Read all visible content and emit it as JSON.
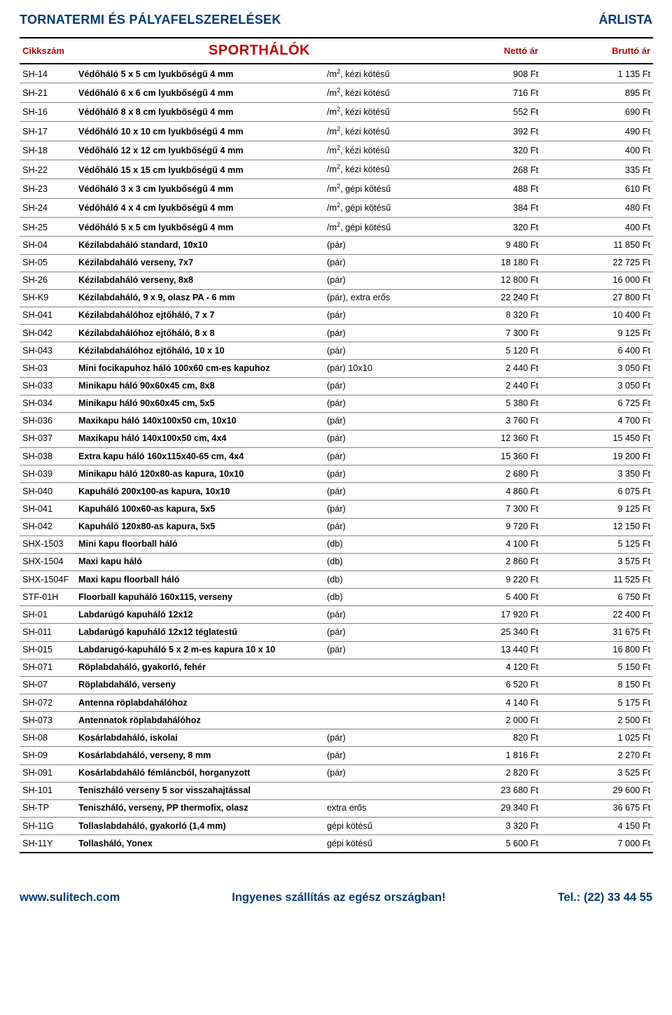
{
  "header": {
    "title_left": "TORNATERMI ÉS PÁLYAFELSZERELÉSEK",
    "title_right": "ÁRLISTA"
  },
  "table": {
    "headers": {
      "code": "Cikkszám",
      "title": "SPORTHÁLÓK",
      "net": "Nettó ár",
      "gross": "Bruttó ár"
    },
    "rows": [
      {
        "code": "SH-14",
        "desc": "Védőháló   5 x 5 cm   lyukbőségű    4 mm",
        "unit": "/m²,  kézi kötésű",
        "net": "908 Ft",
        "gross": "1 135 Ft"
      },
      {
        "code": "SH-21",
        "desc": "Védőháló   6 x 6 cm   lyukbőségű    4 mm",
        "unit": "/m²,  kézi kötésű",
        "net": "716 Ft",
        "gross": "895 Ft"
      },
      {
        "code": "SH-16",
        "desc": "Védőháló   8 x 8 cm   lyukbőségű    4 mm",
        "unit": "/m²,  kézi kötésű",
        "net": "552 Ft",
        "gross": "690 Ft"
      },
      {
        "code": "SH-17",
        "desc": "Védőháló  10 x 10 cm lyukbőségű    4 mm",
        "unit": "/m²,  kézi kötésű",
        "net": "392 Ft",
        "gross": "490 Ft"
      },
      {
        "code": "SH-18",
        "desc": "Védőháló  12 x 12 cm lyukbőségű    4 mm",
        "unit": "/m²,  kézi kötésű",
        "net": "320 Ft",
        "gross": "400 Ft"
      },
      {
        "code": "SH-22",
        "desc": "Védőháló  15 x 15 cm lyukbőségű    4 mm",
        "unit": "/m²,  kézi kötésű",
        "net": "268 Ft",
        "gross": "335 Ft"
      },
      {
        "code": "SH-23",
        "desc": "Védőháló  3 x 3 cm lyukbőségű    4 mm",
        "unit": "/m²,  gépi kötésű",
        "net": "488 Ft",
        "gross": "610 Ft"
      },
      {
        "code": "SH-24",
        "desc": "Védőháló  4 x 4 cm lyukbőségű    4 mm",
        "unit": "/m²,  gépi kötésű",
        "net": "384 Ft",
        "gross": "480 Ft"
      },
      {
        "code": "SH-25",
        "desc": "Védőháló  5 x 5 cm lyukbőségű    4 mm",
        "unit": "/m²,  gépi kötésű",
        "net": "320 Ft",
        "gross": "400 Ft"
      },
      {
        "code": "SH-04",
        "desc": "Kézilabdaháló standard, 10x10",
        "unit": "(pár)",
        "net": "9 480 Ft",
        "gross": "11 850 Ft"
      },
      {
        "code": "SH-05",
        "desc": "Kézilabdaháló verseny, 7x7",
        "unit": "(pár)",
        "net": "18 180 Ft",
        "gross": "22 725 Ft"
      },
      {
        "code": "SH-26",
        "desc": "Kézilabdaháló verseny, 8x8",
        "unit": "(pár)",
        "net": "12 800 Ft",
        "gross": "16 000 Ft"
      },
      {
        "code": "SH-K9",
        "desc": "Kézilabdaháló, 9 x 9, olasz PA - 6 mm",
        "unit": "(pár),  extra erős",
        "net": "22 240 Ft",
        "gross": "27 800 Ft"
      },
      {
        "code": "SH-041",
        "desc": "Kézilabdahálóhoz ejtőháló, 7 x 7",
        "unit": "(pár)",
        "net": "8 320 Ft",
        "gross": "10 400 Ft"
      },
      {
        "code": "SH-042",
        "desc": "Kézilabdahálóhoz ejtőháló, 8 x 8",
        "unit": "(pár)",
        "net": "7 300 Ft",
        "gross": "9 125 Ft"
      },
      {
        "code": "SH-043",
        "desc": "Kézilabdahálóhoz ejtőháló, 10 x 10",
        "unit": "(pár)",
        "net": "5 120 Ft",
        "gross": "6 400 Ft"
      },
      {
        "code": "SH-03",
        "desc": "Mini focikapuhoz háló 100x60 cm-es kapuhoz",
        "unit": "(pár) 10x10",
        "net": "2 440 Ft",
        "gross": "3 050 Ft"
      },
      {
        "code": "SH-033",
        "desc": "Minikapu háló 90x60x45 cm, 8x8",
        "unit": "(pár)",
        "net": "2 440 Ft",
        "gross": "3 050 Ft"
      },
      {
        "code": "SH-034",
        "desc": "Minikapu háló 90x60x45 cm, 5x5",
        "unit": "(pár)",
        "net": "5 380 Ft",
        "gross": "6 725 Ft"
      },
      {
        "code": "SH-036",
        "desc": "Maxikapu háló 140x100x50 cm, 10x10",
        "unit": "(pár)",
        "net": "3 760 Ft",
        "gross": "4 700 Ft"
      },
      {
        "code": "SH-037",
        "desc": "Maxikapu háló 140x100x50 cm, 4x4",
        "unit": "(pár)",
        "net": "12 360 Ft",
        "gross": "15 450 Ft"
      },
      {
        "code": "SH-038",
        "desc": "Extra kapu háló 160x115x40-65 cm, 4x4",
        "unit": "(pár)",
        "net": "15 360 Ft",
        "gross": "19 200 Ft"
      },
      {
        "code": "SH-039",
        "desc": "Minikapu háló 120x80-as kapura, 10x10",
        "unit": "(pár)",
        "net": "2 680 Ft",
        "gross": "3 350 Ft"
      },
      {
        "code": "SH-040",
        "desc": "Kapuháló 200x100-as kapura, 10x10",
        "unit": "(pár)",
        "net": "4 860 Ft",
        "gross": "6 075 Ft"
      },
      {
        "code": "SH-041",
        "desc": "Kapuháló 100x60-as kapura, 5x5",
        "unit": "(pár)",
        "net": "7 300 Ft",
        "gross": "9 125 Ft"
      },
      {
        "code": "SH-042",
        "desc": "Kapuháló 120x80-as kapura, 5x5",
        "unit": "(pár)",
        "net": "9 720 Ft",
        "gross": "12 150 Ft"
      },
      {
        "code": "SHX-1503",
        "desc": "Mini kapu floorball háló",
        "unit": "(db)",
        "net": "4 100 Ft",
        "gross": "5 125 Ft"
      },
      {
        "code": "SHX-1504",
        "desc": "Maxi kapu háló",
        "unit": "(db)",
        "net": "2 860 Ft",
        "gross": "3 575 Ft"
      },
      {
        "code": "SHX-1504F",
        "desc": "Maxi kapu floorball háló",
        "unit": "(db)",
        "net": "9 220 Ft",
        "gross": "11 525 Ft"
      },
      {
        "code": "STF-01H",
        "desc": "Floorball kapuháló 160x115, verseny",
        "unit": "(db)",
        "net": "5 400 Ft",
        "gross": "6 750 Ft"
      },
      {
        "code": "SH-01",
        "desc": "Labdarúgó kapuháló 12x12",
        "unit": "(pár)",
        "net": "17 920 Ft",
        "gross": "22 400 Ft"
      },
      {
        "code": "SH-011",
        "desc": "Labdarúgó kapuháló 12x12 téglatestű",
        "unit": "(pár)",
        "net": "25 340 Ft",
        "gross": "31 675 Ft"
      },
      {
        "code": "SH-015",
        "desc": "Labdarugó-kapuháló 5 x 2 m-es kapura 10 x 10",
        "unit": "(pár)",
        "net": "13 440 Ft",
        "gross": "16 800 Ft"
      },
      {
        "code": "SH-071",
        "desc": "Röplabdaháló, gyakorló, fehér",
        "unit": "",
        "net": "4 120 Ft",
        "gross": "5 150 Ft"
      },
      {
        "code": "SH-07",
        "desc": "Röplabdaháló, verseny",
        "unit": "",
        "net": "6 520 Ft",
        "gross": "8 150 Ft"
      },
      {
        "code": "SH-072",
        "desc": "Antenna röplabdahálóhoz",
        "unit": "",
        "net": "4 140 Ft",
        "gross": "5 175 Ft"
      },
      {
        "code": "SH-073",
        "desc": "Antennatok röplabdahálóhoz",
        "unit": "",
        "net": "2 000 Ft",
        "gross": "2 500 Ft"
      },
      {
        "code": "SH-08",
        "desc": "Kosárlabdaháló, iskolai",
        "unit": "(pár)",
        "net": "820 Ft",
        "gross": "1 025 Ft"
      },
      {
        "code": "SH-09",
        "desc": "Kosárlabdaháló, verseny, 8 mm",
        "unit": "(pár)",
        "net": "1 816 Ft",
        "gross": "2 270 Ft"
      },
      {
        "code": "SH-091",
        "desc": "Kosárlabdaháló fémláncból, horganyzott",
        "unit": "(pár)",
        "net": "2 820 Ft",
        "gross": "3 525 Ft"
      },
      {
        "code": "SH-101",
        "desc": "Teniszháló verseny 5 sor visszahajtással",
        "unit": "",
        "net": "23 680 Ft",
        "gross": "29 600 Ft"
      },
      {
        "code": "SH-TP",
        "desc": "Teniszháló, verseny, PP thermofix, olasz",
        "unit": "extra erős",
        "net": "29 340 Ft",
        "gross": "36 675 Ft"
      },
      {
        "code": "SH-11G",
        "desc": "Tollaslabdaháló, gyakorló  (1,4 mm)",
        "unit": "gépi kötésű",
        "net": "3 320 Ft",
        "gross": "4 150 Ft"
      },
      {
        "code": "SH-11Y",
        "desc": "Tollasháló, Yonex",
        "unit": "gépi kötésű",
        "net": "5 600 Ft",
        "gross": "7 000 Ft"
      }
    ]
  },
  "footer": {
    "site": "www.sulitech.com",
    "shipping": "Ingyenes szállítás az egész országban!",
    "tel": "Tel.: (22) 33 44 55"
  },
  "style": {
    "brand_color": "#003a75",
    "header_color": "#c00000",
    "row_border": "#808080"
  }
}
